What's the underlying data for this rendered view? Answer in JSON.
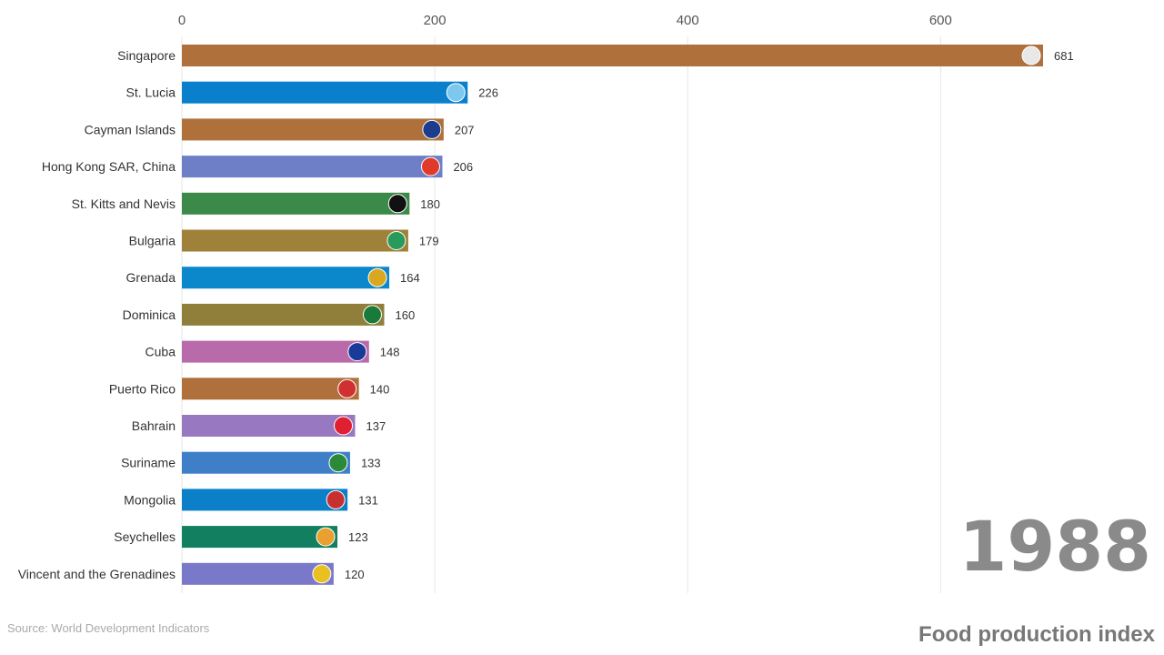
{
  "chart_data": {
    "type": "bar",
    "orientation": "horizontal",
    "title": "Food production index",
    "year": "1988",
    "source": "Source: World Development Indicators",
    "xlim": [
      0,
      680
    ],
    "xticks": [
      0,
      200,
      400,
      600
    ],
    "grid": true,
    "categories": [
      "Singapore",
      "St. Lucia",
      "Cayman Islands",
      "Hong Kong SAR, China",
      "St. Kitts and Nevis",
      "Bulgaria",
      "Grenada",
      "Dominica",
      "Cuba",
      "Puerto Rico",
      "Bahrain",
      "Suriname",
      "Mongolia",
      "Seychelles",
      "Vincent and the Grenadines"
    ],
    "values": [
      681,
      226,
      207,
      206,
      180,
      179,
      164,
      160,
      148,
      140,
      137,
      133,
      131,
      123,
      120
    ],
    "colors": [
      "#b0703c",
      "#0a7fcc",
      "#b0703c",
      "#6e7fc8",
      "#3b8a4a",
      "#a0813a",
      "#0b88cc",
      "#8f7f3a",
      "#b96aaa",
      "#b0703c",
      "#9878c0",
      "#3e7fc8",
      "#0b80c8",
      "#128060",
      "#7a78c8"
    ],
    "flag_colors": [
      "#e8e8e8",
      "#7cc8ee",
      "#1c3c8c",
      "#e03a2a",
      "#111111",
      "#2a9a5a",
      "#d8a820",
      "#1a7a3a",
      "#1a3a9a",
      "#d03030",
      "#e02030",
      "#2a8a3a",
      "#c83030",
      "#e8a030",
      "#e8c020"
    ]
  }
}
